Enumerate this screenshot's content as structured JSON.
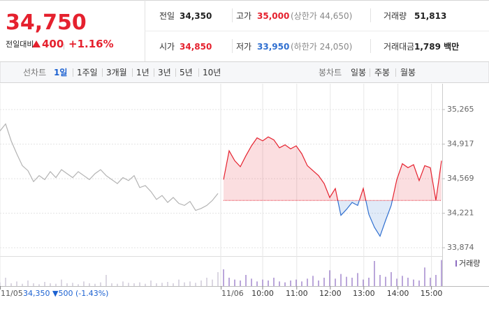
{
  "header": {
    "price": "34,750",
    "change_label": "전일대비",
    "change": "400",
    "change_rate": "+1.16%",
    "rows": [
      [
        {
          "label": "전일",
          "value": "34,350"
        },
        {
          "label": "고가",
          "value": "35,000",
          "extra": "(상한가 44,650)"
        },
        {
          "label": "거래량",
          "value": "51,813"
        }
      ],
      [
        {
          "label": "시가",
          "value": "34,850"
        },
        {
          "label": "저가",
          "value": "33,950",
          "extra": "(하한가 24,050)"
        },
        {
          "label": "거래대금",
          "value": "1,789 백만"
        }
      ]
    ]
  },
  "tabs": {
    "line_label": "선차트",
    "line_tabs": [
      "1일",
      "1주일",
      "3개월",
      "1년",
      "3년",
      "5년",
      "10년"
    ],
    "selected": "1일",
    "candle_label": "봉차트",
    "candle_tabs": [
      "일봉",
      "주봉",
      "월봉"
    ]
  },
  "chart_data": {
    "type": "line",
    "series": [
      {
        "color": "#b3b3b3",
        "x": [
          0,
          1,
          2,
          3,
          4,
          5,
          6,
          7,
          8,
          9,
          10,
          11,
          12,
          13,
          14,
          15,
          16,
          17,
          18,
          19,
          20,
          21,
          22,
          23,
          24,
          25,
          26,
          27,
          28,
          29,
          30,
          31,
          32,
          33,
          34,
          35,
          36,
          37,
          38,
          39
        ],
        "values": [
          35050,
          35120,
          34950,
          34820,
          34700,
          34650,
          34540,
          34600,
          34560,
          34640,
          34580,
          34660,
          34620,
          34580,
          34640,
          34600,
          34560,
          34620,
          34660,
          34600,
          34560,
          34520,
          34580,
          34550,
          34600,
          34480,
          34500,
          34440,
          34360,
          34400,
          34330,
          34380,
          34320,
          34300,
          34340,
          34250,
          34270,
          34300,
          34350,
          34420
        ]
      },
      {
        "color": "#e5212e",
        "below_color": "#2f6fd0",
        "x": [
          40,
          41,
          42,
          43,
          44,
          45,
          46,
          47,
          48,
          49,
          50,
          51,
          52,
          53,
          54,
          55,
          56,
          57,
          58,
          59,
          60,
          61,
          62,
          63,
          64,
          65,
          66,
          67,
          68,
          69,
          70,
          71,
          72,
          73,
          74,
          75,
          76,
          77,
          78,
          79
        ],
        "values": [
          34560,
          34850,
          34750,
          34690,
          34800,
          34900,
          34980,
          34950,
          34990,
          34960,
          34880,
          34910,
          34870,
          34900,
          34820,
          34700,
          34650,
          34600,
          34520,
          34380,
          34470,
          34200,
          34260,
          34330,
          34300,
          34470,
          34210,
          34080,
          33990,
          34150,
          34300,
          34560,
          34720,
          34680,
          34710,
          34550,
          34700,
          34680,
          34350,
          34750
        ]
      }
    ],
    "previous_close": 34350,
    "ylim": [
      33804,
      35525
    ],
    "yticks": [
      {
        "value": 35265,
        "label": "35,265"
      },
      {
        "value": 34917,
        "label": "34,917"
      },
      {
        "value": 34569,
        "label": "34,569"
      },
      {
        "value": 34221,
        "label": "34,221"
      },
      {
        "value": 33874,
        "label": "33,874"
      }
    ],
    "xlim": [
      0,
      80
    ],
    "day_ticks": [
      {
        "value": 0,
        "label": "11/05"
      },
      {
        "value": 39.5,
        "label": "11/06"
      }
    ],
    "xticks": [
      {
        "value": 47,
        "label": "10:00"
      },
      {
        "value": 53.1,
        "label": "11:00"
      },
      {
        "value": 59.1,
        "label": "12:00"
      },
      {
        "value": 65.1,
        "label": "13:00"
      },
      {
        "value": 71.2,
        "label": "14:00"
      },
      {
        "value": 77.2,
        "label": "15:00"
      }
    ],
    "prev_day_summary": "34,350 ▼500 (-1.43%)",
    "volume": {
      "name": "거래량",
      "color": "#8c6bc0",
      "prev_color": "#c3bccf",
      "ylim": [
        0,
        3000
      ],
      "values": [
        400,
        900,
        300,
        500,
        250,
        600,
        300,
        200,
        450,
        300,
        250,
        700,
        300,
        350,
        200,
        500,
        300,
        250,
        400,
        1200,
        300,
        250,
        500,
        350,
        300,
        400,
        250,
        600,
        300,
        350,
        450,
        300,
        700,
        400,
        500,
        350,
        600,
        900,
        700,
        1500,
        1800,
        900,
        700,
        600,
        1200,
        800,
        500,
        700,
        600,
        900,
        500,
        400,
        600,
        700,
        500,
        800,
        1100,
        600,
        900,
        1700,
        800,
        1300,
        1000,
        900,
        1400,
        700,
        900,
        2700,
        1200,
        1000,
        1500,
        800,
        1100,
        900,
        700,
        600,
        2000,
        900,
        1200,
        2800
      ]
    },
    "grid": true
  }
}
